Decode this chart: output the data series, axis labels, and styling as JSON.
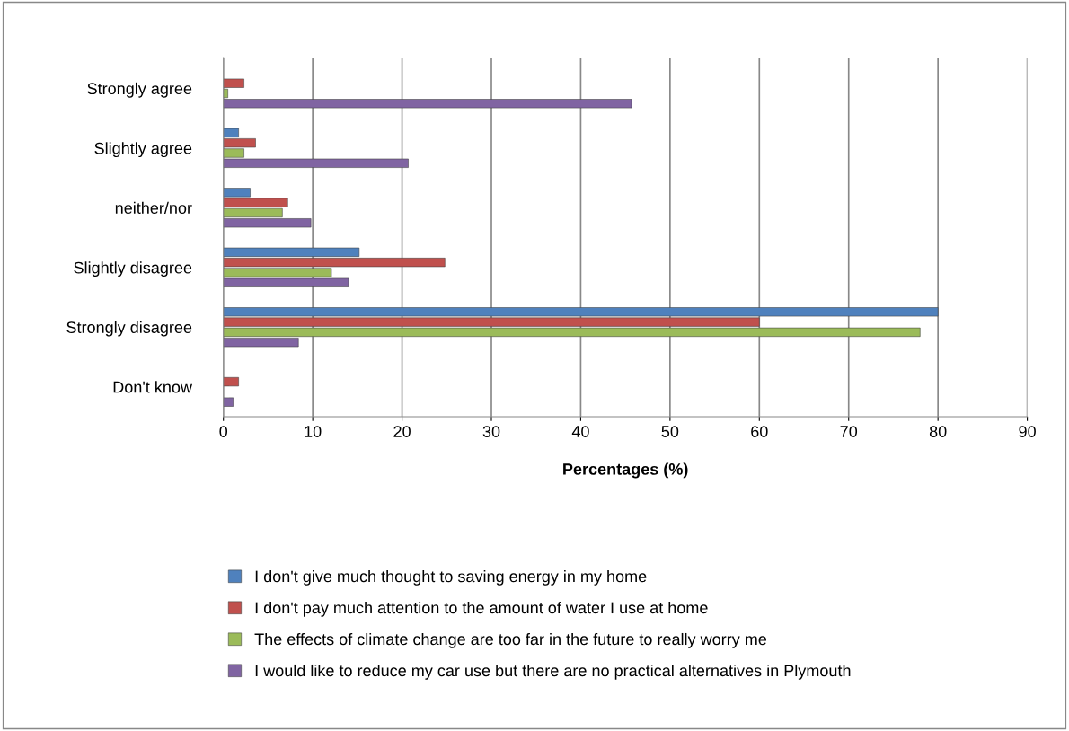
{
  "chart_data": {
    "type": "bar",
    "orientation": "horizontal",
    "xlabel": "Percentages (%)",
    "categories": [
      "Strongly agree",
      "Slightly agree",
      "neither/nor",
      "Slightly disagree",
      "Strongly disagree",
      "Don't know"
    ],
    "series": [
      {
        "name": "I don't give much thought to saving energy in my home",
        "color": "#4f81bd",
        "values": [
          null,
          1.7,
          3.0,
          15.2,
          80,
          null
        ]
      },
      {
        "name": "I don't pay much attention to the amount of water I use at home",
        "color": "#c0504d",
        "values": [
          2.3,
          3.6,
          7.2,
          24.8,
          60,
          1.7
        ]
      },
      {
        "name": "The effects of climate change are too far in the future to really worry me",
        "color": "#9bbb59",
        "values": [
          0.5,
          2.3,
          6.6,
          12.1,
          78,
          null
        ]
      },
      {
        "name": "I would like to reduce my car use but there are no practical alternatives in Plymouth",
        "color": "#8064a2",
        "values": [
          45.7,
          20.7,
          9.8,
          14.0,
          8.4,
          1.1
        ]
      }
    ],
    "xlim": [
      0,
      90
    ],
    "xticks": [
      0,
      10,
      20,
      30,
      40,
      50,
      60,
      70,
      80,
      90
    ],
    "grid": "x",
    "legend": "bottom"
  }
}
